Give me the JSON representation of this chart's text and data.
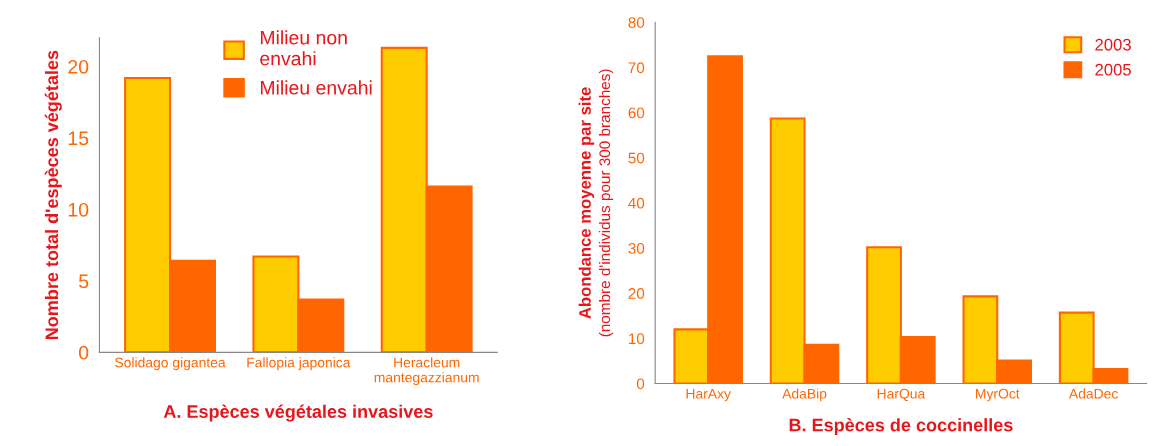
{
  "chart_data": [
    {
      "type": "bar",
      "xlabel": "A. Espèces végétales invasives",
      "ylabel": "Nombre total d'espèces végétales",
      "categories": [
        "Solidago gigantea",
        "Fallopia japonica",
        "Heracleum\nmantegazzianum"
      ],
      "series": [
        {
          "name": "Milieu non\nenvahi",
          "color": "#ffcc00",
          "values": [
            19.2,
            6.7,
            21.3
          ]
        },
        {
          "name": "Milieu envahi",
          "color": "#ff6600",
          "values": [
            6.4,
            3.7,
            11.6
          ]
        }
      ],
      "ylim": [
        0,
        22
      ],
      "yticks": [
        0,
        5,
        10,
        15,
        20
      ],
      "grid": false,
      "legend": "top left"
    },
    {
      "type": "bar",
      "xlabel": "B. Espèces de coccinelles",
      "ylabel": "Abondance moyenne par site\n(nombre d'individus pour 300 branches)",
      "categories": [
        "HarAxy",
        "AdaBip",
        "HarQua",
        "MyrOct",
        "AdaDec"
      ],
      "series": [
        {
          "name": "2003",
          "color": "#ffcc00",
          "values": [
            12,
            58.7,
            30.2,
            19.3,
            15.7
          ]
        },
        {
          "name": "2005",
          "color": "#ff6600",
          "values": [
            72.5,
            8.6,
            10.3,
            5.1,
            3.2
          ]
        }
      ],
      "ylim": [
        0,
        80
      ],
      "yticks": [
        0,
        10,
        20,
        30,
        40,
        50,
        60,
        70,
        80
      ],
      "grid": false,
      "legend": "top right"
    }
  ]
}
